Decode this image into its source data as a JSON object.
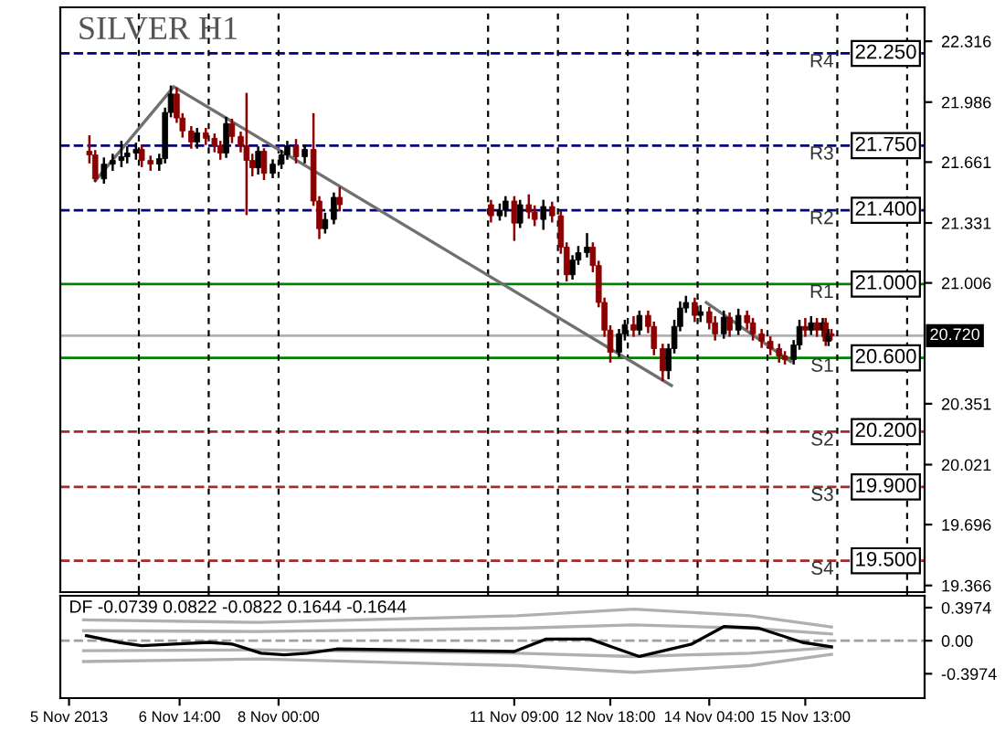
{
  "chart_data": [
    {
      "type": "candlestick",
      "title": "SILVER H1",
      "tick_labels": "y",
      "grid": "x",
      "xlim": [
        "2013-11-04T21:00",
        "2013-11-17T06:00"
      ],
      "ylim": [
        19.33,
        22.5
      ],
      "xticks": [
        {
          "value": "2013-11-06",
          "label": null
        },
        {
          "value": "2013-11-07",
          "label": null
        },
        {
          "value": "2013-11-08",
          "label": null
        },
        {
          "value": "2013-11-11",
          "label": null
        },
        {
          "value": "2013-11-12",
          "label": null
        },
        {
          "value": "2013-11-13",
          "label": null
        },
        {
          "value": "2013-11-14",
          "label": null
        },
        {
          "value": "2013-11-15",
          "label": null
        },
        {
          "value": "2013-11-16",
          "label": null
        },
        {
          "value": "2013-11-17",
          "label": null
        }
      ],
      "yticks": [
        22.316,
        21.986,
        21.661,
        21.331,
        21.006,
        20.351,
        20.021,
        19.696,
        19.366
      ],
      "x": [
        "2013-11-05T07:00",
        "2013-11-05T09:00",
        "2013-11-05T12:00",
        "2013-11-05T15:00",
        "2013-11-05T18:00",
        "2013-11-05T20:00",
        "2013-11-05T23:00",
        "2013-11-06T01:00",
        "2013-11-06T04:00",
        "2013-11-06T07:00",
        "2013-11-06T09:00",
        "2013-11-06T11:00",
        "2013-11-06T13:00",
        "2013-11-06T15:00",
        "2013-11-06T18:00",
        "2013-11-06T20:00",
        "2013-11-06T23:00",
        "2013-11-07T02:00",
        "2013-11-07T04:00",
        "2013-11-07T06:00",
        "2013-11-07T08:00",
        "2013-11-07T11:00",
        "2013-11-07T13:00",
        "2013-11-07T15:00",
        "2013-11-07T17:00",
        "2013-11-07T19:00",
        "2013-11-07T22:00",
        "2013-11-08T01:00",
        "2013-11-08T03:00",
        "2013-11-08T06:00",
        "2013-11-08T09:00",
        "2013-11-08T12:00",
        "2013-11-08T14:00",
        "2013-11-08T16:00",
        "2013-11-08T19:00",
        "2013-11-08T21:00",
        "2013-11-11T01:00",
        "2013-11-11T04:00",
        "2013-11-11T06:00",
        "2013-11-11T09:00",
        "2013-11-11T11:00",
        "2013-11-11T14:00",
        "2013-11-11T16:00",
        "2013-11-11T19:00",
        "2013-11-11T22:00",
        "2013-11-12T01:00",
        "2013-11-12T03:00",
        "2013-11-12T05:00",
        "2013-11-12T07:00",
        "2013-11-12T10:00",
        "2013-11-12T12:00",
        "2013-11-12T14:00",
        "2013-11-12T16:00",
        "2013-11-12T18:00",
        "2013-11-12T21:00",
        "2013-11-12T23:00",
        "2013-11-13T02:00",
        "2013-11-13T04:00",
        "2013-11-13T07:00",
        "2013-11-13T09:00",
        "2013-11-13T12:00",
        "2013-11-13T14:00",
        "2013-11-13T16:00",
        "2013-11-13T18:00",
        "2013-11-13T20:00",
        "2013-11-13T23:00",
        "2013-11-14T01:00",
        "2013-11-14T04:00",
        "2013-11-14T06:00",
        "2013-11-14T09:00",
        "2013-11-14T11:00",
        "2013-11-14T14:00",
        "2013-11-14T17:00",
        "2013-11-14T19:00",
        "2013-11-14T22:00",
        "2013-11-15T01:00",
        "2013-11-15T04:00",
        "2013-11-15T06:00",
        "2013-11-15T09:00",
        "2013-11-15T11:00",
        "2013-11-15T13:00",
        "2013-11-15T15:00",
        "2013-11-15T17:00",
        "2013-11-15T19:00",
        "2013-11-15T20:00",
        "2013-11-15T21:00",
        "2013-11-15T22:00"
      ],
      "ohlc": [
        [
          21.72,
          21.8,
          21.66,
          21.7
        ],
        [
          21.7,
          21.72,
          21.56,
          21.57
        ],
        [
          21.57,
          21.68,
          21.55,
          21.65
        ],
        [
          21.65,
          21.7,
          21.62,
          21.67
        ],
        [
          21.67,
          21.77,
          21.64,
          21.69
        ],
        [
          21.69,
          21.74,
          21.66,
          21.71
        ],
        [
          21.71,
          21.76,
          21.68,
          21.73
        ],
        [
          21.73,
          21.75,
          21.64,
          21.67
        ],
        [
          21.67,
          21.69,
          21.62,
          21.65
        ],
        [
          21.65,
          21.7,
          21.62,
          21.68
        ],
        [
          21.68,
          21.95,
          21.66,
          21.93
        ],
        [
          21.93,
          22.07,
          21.91,
          22.03
        ],
        [
          22.03,
          22.06,
          21.88,
          21.9
        ],
        [
          21.9,
          21.92,
          21.8,
          21.83
        ],
        [
          21.83,
          21.85,
          21.74,
          21.77
        ],
        [
          21.77,
          21.84,
          21.74,
          21.82
        ],
        [
          21.82,
          21.84,
          21.76,
          21.79
        ],
        [
          21.79,
          21.81,
          21.72,
          21.75
        ],
        [
          21.75,
          21.77,
          21.68,
          21.71
        ],
        [
          21.71,
          21.9,
          21.69,
          21.87
        ],
        [
          21.87,
          21.89,
          21.77,
          21.8
        ],
        [
          21.8,
          21.82,
          21.72,
          21.75
        ],
        [
          21.75,
          22.03,
          21.38,
          21.67
        ],
        [
          21.67,
          21.7,
          21.59,
          21.63
        ],
        [
          21.63,
          21.74,
          21.6,
          21.72
        ],
        [
          21.72,
          21.73,
          21.57,
          21.6
        ],
        [
          21.6,
          21.67,
          21.58,
          21.65
        ],
        [
          21.65,
          21.72,
          21.63,
          21.7
        ],
        [
          21.7,
          21.77,
          21.68,
          21.75
        ],
        [
          21.75,
          21.78,
          21.66,
          21.69
        ],
        [
          21.69,
          21.75,
          21.66,
          21.73
        ],
        [
          21.73,
          21.92,
          21.43,
          21.45
        ],
        [
          21.45,
          21.47,
          21.25,
          21.3
        ],
        [
          21.3,
          21.38,
          21.28,
          21.35
        ],
        [
          21.35,
          21.49,
          21.33,
          21.47
        ],
        [
          21.47,
          21.52,
          21.4,
          21.43
        ],
        [
          21.43,
          21.45,
          21.34,
          21.37
        ],
        [
          21.37,
          21.43,
          21.35,
          21.4
        ],
        [
          21.4,
          21.47,
          21.37,
          21.45
        ],
        [
          21.45,
          21.47,
          21.24,
          21.33
        ],
        [
          21.33,
          21.45,
          21.31,
          21.43
        ],
        [
          21.43,
          21.48,
          21.36,
          21.39
        ],
        [
          21.39,
          21.42,
          21.32,
          21.35
        ],
        [
          21.35,
          21.45,
          21.3,
          21.42
        ],
        [
          21.42,
          21.44,
          21.34,
          21.37
        ],
        [
          21.37,
          21.39,
          21.17,
          21.2
        ],
        [
          21.2,
          21.22,
          21.02,
          21.05
        ],
        [
          21.05,
          21.15,
          21.03,
          21.13
        ],
        [
          21.13,
          21.2,
          21.11,
          21.17
        ],
        [
          21.17,
          21.27,
          21.15,
          21.2
        ],
        [
          21.2,
          21.22,
          21.07,
          21.1
        ],
        [
          21.1,
          21.12,
          20.88,
          20.9
        ],
        [
          20.9,
          20.92,
          20.72,
          20.75
        ],
        [
          20.75,
          20.77,
          20.58,
          20.63
        ],
        [
          20.63,
          20.75,
          20.61,
          20.73
        ],
        [
          20.73,
          20.8,
          20.7,
          20.78
        ],
        [
          20.78,
          20.82,
          20.72,
          20.75
        ],
        [
          20.75,
          20.85,
          20.73,
          20.83
        ],
        [
          20.83,
          20.85,
          20.74,
          20.77
        ],
        [
          20.77,
          20.79,
          20.62,
          20.65
        ],
        [
          20.65,
          20.67,
          20.48,
          20.53
        ],
        [
          20.53,
          20.67,
          20.49,
          20.65
        ],
        [
          20.65,
          20.8,
          20.63,
          20.77
        ],
        [
          20.77,
          20.9,
          20.75,
          20.87
        ],
        [
          20.87,
          20.93,
          20.85,
          20.9
        ],
        [
          20.9,
          20.92,
          20.8,
          20.83
        ],
        [
          20.83,
          20.88,
          20.8,
          20.85
        ],
        [
          20.85,
          20.87,
          20.76,
          20.79
        ],
        [
          20.79,
          20.82,
          20.7,
          20.73
        ],
        [
          20.73,
          20.85,
          20.71,
          20.82
        ],
        [
          20.82,
          20.84,
          20.72,
          20.75
        ],
        [
          20.75,
          20.86,
          20.73,
          20.83
        ],
        [
          20.83,
          20.85,
          20.76,
          20.79
        ],
        [
          20.79,
          20.81,
          20.7,
          20.73
        ],
        [
          20.73,
          20.75,
          20.66,
          20.69
        ],
        [
          20.69,
          20.71,
          20.62,
          20.65
        ],
        [
          20.65,
          20.67,
          20.58,
          20.61
        ],
        [
          20.61,
          20.63,
          20.57,
          20.59
        ],
        [
          20.59,
          20.69,
          20.57,
          20.67
        ],
        [
          20.67,
          20.8,
          20.65,
          20.77
        ],
        [
          20.77,
          20.81,
          20.72,
          20.75
        ],
        [
          20.75,
          20.82,
          20.73,
          20.79
        ],
        [
          20.79,
          20.81,
          20.72,
          20.75
        ],
        [
          20.75,
          20.81,
          20.72,
          20.79
        ],
        [
          20.79,
          20.81,
          20.67,
          20.69
        ],
        [
          20.69,
          20.75,
          20.67,
          20.73
        ],
        [
          20.73,
          20.75,
          20.7,
          20.72
        ]
      ],
      "series": [
        {
          "type": "line",
          "x": [
            "2013-11-05T09:00",
            "2013-11-06T12:00",
            "2013-11-13T15:00"
          ],
          "values": [
            21.56,
            22.07,
            20.45
          ],
          "color": "#707070"
        },
        {
          "type": "line",
          "x": [
            "2013-11-14T03:00",
            "2013-11-15T08:00"
          ],
          "values": [
            20.9,
            20.58
          ],
          "color": "#707070"
        }
      ],
      "ref_lines": [
        {
          "axis": "y",
          "value": 22.25,
          "label": "R4",
          "color": "#000080",
          "line_style": "dashed"
        },
        {
          "axis": "y",
          "value": 21.75,
          "label": "R3",
          "color": "#000080",
          "line_style": "dashed"
        },
        {
          "axis": "y",
          "value": 21.4,
          "label": "R2",
          "color": "#000080",
          "line_style": "dashed"
        },
        {
          "axis": "y",
          "value": 21.0,
          "label": "R1",
          "color": "#008000",
          "line_style": "solid"
        },
        {
          "axis": "y",
          "value": 20.72,
          "label": "20.720",
          "color": "#b0b0b0",
          "line_style": "solid"
        },
        {
          "axis": "y",
          "value": 20.6,
          "label": "S1",
          "color": "#008000",
          "line_style": "solid"
        },
        {
          "axis": "y",
          "value": 20.2,
          "label": "S2",
          "color": "#a52a2a",
          "line_style": "dashed"
        },
        {
          "axis": "y",
          "value": 19.9,
          "label": "S3",
          "color": "#a52a2a",
          "line_style": "dashed"
        },
        {
          "axis": "y",
          "value": 19.5,
          "label": "S4",
          "color": "#a52a2a",
          "line_style": "dashed"
        }
      ],
      "annotations": [
        {
          "text": "22.250",
          "x": "2013-11-16T06:00",
          "y": 22.25
        },
        {
          "text": "21.750",
          "x": "2013-11-16T06:00",
          "y": 21.75
        },
        {
          "text": "21.400",
          "x": "2013-11-16T06:00",
          "y": 21.4
        },
        {
          "text": "21.000",
          "x": "2013-11-16T06:00",
          "y": 21.0
        },
        {
          "text": "20.600",
          "x": "2013-11-16T06:00",
          "y": 20.6
        },
        {
          "text": "20.200",
          "x": "2013-11-16T06:00",
          "y": 20.2
        },
        {
          "text": "19.900",
          "x": "2013-11-16T06:00",
          "y": 19.9
        },
        {
          "text": "19.500",
          "x": "2013-11-16T06:00",
          "y": 19.5
        }
      ]
    },
    {
      "type": "line",
      "title": "DF -0.0739 0.0822 -0.0822 0.1644 -0.1644",
      "xlim": [
        "2013-11-04T21:00",
        "2013-11-17T06:00"
      ],
      "ylim": [
        -0.69,
        0.54
      ],
      "xticks": [
        {
          "value": "2013-11-05T00:00",
          "label": "5 Nov 2013"
        },
        {
          "value": "2013-11-06T14:00",
          "label": "6 Nov 14:00"
        },
        {
          "value": "2013-11-08T00:00",
          "label": "8 Nov 00:00"
        },
        {
          "value": "2013-11-11T09:00",
          "label": "11 Nov 09:00"
        },
        {
          "value": "2013-11-12T18:00",
          "label": "12 Nov 18:00"
        },
        {
          "value": "2013-11-14T04:00",
          "label": "14 Nov 04:00"
        },
        {
          "value": "2013-11-15T13:00",
          "label": "15 Nov 13:00"
        }
      ],
      "yticks": [
        0.3974,
        {
          "value": 0,
          "label": "0.00"
        },
        -0.3974
      ],
      "series": [
        {
          "color": "#b0b0b0",
          "x": [
            "2013-11-05T05:00",
            "2013-11-07T17:00",
            "2013-11-11T10:00",
            "2013-11-13T02:00",
            "2013-11-14T18:00",
            "2013-11-15T22:00"
          ],
          "values": [
            0.25,
            0.22,
            0.3,
            0.38,
            0.3,
            0.1644
          ]
        },
        {
          "color": "#b0b0b0",
          "x": [
            "2013-11-05T05:00",
            "2013-11-07T17:00",
            "2013-11-11T10:00",
            "2013-11-13T02:00",
            "2013-11-14T18:00",
            "2013-11-15T22:00"
          ],
          "values": [
            0.12,
            0.11,
            0.15,
            0.19,
            0.15,
            0.0822
          ]
        },
        {
          "color": "#b0b0b0",
          "x": [
            "2013-11-05T05:00",
            "2013-11-07T17:00",
            "2013-11-11T10:00",
            "2013-11-13T02:00",
            "2013-11-14T18:00",
            "2013-11-15T22:00"
          ],
          "values": [
            -0.12,
            -0.11,
            -0.15,
            -0.19,
            -0.15,
            -0.0822
          ]
        },
        {
          "color": "#b0b0b0",
          "x": [
            "2013-11-05T05:00",
            "2013-11-07T17:00",
            "2013-11-11T10:00",
            "2013-11-13T02:00",
            "2013-11-14T18:00",
            "2013-11-15T22:00"
          ],
          "values": [
            -0.25,
            -0.22,
            -0.3,
            -0.38,
            -0.3,
            -0.1644
          ]
        },
        {
          "color": "#000000",
          "x": [
            "2013-11-05T06:00",
            "2013-11-05T17:00",
            "2013-11-06T01:00",
            "2013-11-06T12:00",
            "2013-11-07T00:00",
            "2013-11-07T08:00",
            "2013-11-07T18:00",
            "2013-11-08T02:00",
            "2013-11-08T10:00",
            "2013-11-08T20:00",
            "2013-11-11T09:00",
            "2013-11-11T20:00",
            "2013-11-12T11:00",
            "2013-11-12T19:00",
            "2013-11-13T04:00",
            "2013-11-13T22:00",
            "2013-11-14T09:00",
            "2013-11-14T21:00",
            "2013-11-15T12:00",
            "2013-11-15T22:00"
          ],
          "values": [
            0.06,
            -0.02,
            -0.06,
            -0.04,
            -0.02,
            -0.04,
            -0.15,
            -0.17,
            -0.15,
            -0.1,
            -0.13,
            0.02,
            0.02,
            -0.08,
            -0.19,
            -0.04,
            0.17,
            0.15,
            -0.02,
            -0.0739
          ]
        }
      ],
      "ref_lines": [
        {
          "axis": "y",
          "value": 0,
          "color": "#a0a0a0",
          "line_style": "dashed"
        }
      ]
    }
  ]
}
